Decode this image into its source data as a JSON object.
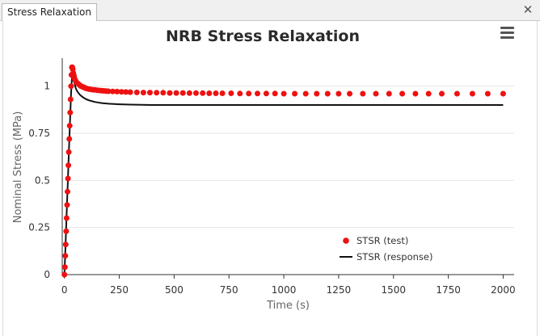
{
  "window": {
    "tab_label": "Stress Relaxation",
    "close_label": "✕"
  },
  "chart_data": {
    "type": "line",
    "title": "NRB Stress Relaxation",
    "xlabel": "Time (s)",
    "ylabel": "Nominal Stress (MPa)",
    "xlim": [
      -10,
      2050
    ],
    "ylim": [
      0,
      1.2
    ],
    "x_ticks": [
      0,
      250,
      500,
      750,
      1000,
      1250,
      1500,
      1750,
      2000
    ],
    "x_tick_labels": [
      "0",
      "250",
      "500",
      "750",
      "1000",
      "1250",
      "1500",
      "1750",
      "2000"
    ],
    "y_ticks": [
      0,
      0.25,
      0.5,
      0.75,
      1
    ],
    "y_tick_labels": [
      "0",
      "0.25",
      "0.5",
      "0.75",
      "1"
    ],
    "grid": "horizontal",
    "legend_position": "bottom-right",
    "series": [
      {
        "name": "STSR (test)",
        "style": "markers",
        "color": "#ee1111",
        "x": [
          0,
          2,
          4,
          6,
          8,
          10,
          12,
          14,
          16,
          18,
          20,
          22,
          24,
          26,
          28,
          30,
          32,
          34,
          36,
          38,
          40,
          42,
          44,
          46,
          50,
          55,
          60,
          65,
          70,
          75,
          80,
          85,
          90,
          95,
          100,
          110,
          120,
          130,
          140,
          150,
          160,
          170,
          180,
          190,
          200,
          220,
          240,
          260,
          280,
          300,
          330,
          360,
          390,
          420,
          450,
          480,
          510,
          540,
          570,
          600,
          630,
          660,
          690,
          720,
          760,
          800,
          840,
          880,
          920,
          960,
          1000,
          1050,
          1100,
          1150,
          1200,
          1250,
          1300,
          1360,
          1420,
          1480,
          1540,
          1600,
          1660,
          1720,
          1790,
          1860,
          1930,
          2000
        ],
        "y": [
          0.0,
          0.04,
          0.1,
          0.16,
          0.23,
          0.3,
          0.37,
          0.44,
          0.51,
          0.58,
          0.65,
          0.72,
          0.79,
          0.86,
          0.93,
          1.0,
          1.06,
          1.1,
          1.1,
          1.09,
          1.07,
          1.06,
          1.05,
          1.04,
          1.03,
          1.02,
          1.015,
          1.01,
          1.005,
          1.0,
          0.998,
          0.995,
          0.993,
          0.99,
          0.988,
          0.985,
          0.983,
          0.981,
          0.98,
          0.978,
          0.977,
          0.976,
          0.975,
          0.974,
          0.973,
          0.972,
          0.971,
          0.97,
          0.969,
          0.968,
          0.967,
          0.966,
          0.966,
          0.965,
          0.965,
          0.964,
          0.964,
          0.964,
          0.963,
          0.963,
          0.963,
          0.962,
          0.962,
          0.962,
          0.962,
          0.961,
          0.961,
          0.961,
          0.961,
          0.961,
          0.96,
          0.96,
          0.96,
          0.96,
          0.96,
          0.96,
          0.96,
          0.96,
          0.96,
          0.96,
          0.96,
          0.96,
          0.96,
          0.96,
          0.96,
          0.96,
          0.96,
          0.96
        ]
      },
      {
        "name": "STSR (response)",
        "style": "line",
        "color": "#111111",
        "x": [
          0,
          5,
          10,
          15,
          20,
          25,
          30,
          35,
          38,
          40,
          42,
          45,
          50,
          55,
          60,
          70,
          80,
          90,
          100,
          120,
          140,
          160,
          180,
          200,
          250,
          300,
          350,
          400,
          500,
          700,
          1000,
          1500,
          2000
        ],
        "y": [
          0.0,
          0.16,
          0.32,
          0.48,
          0.64,
          0.8,
          0.96,
          1.06,
          1.09,
          1.07,
          1.04,
          1.02,
          0.995,
          0.98,
          0.97,
          0.955,
          0.945,
          0.937,
          0.93,
          0.922,
          0.916,
          0.912,
          0.909,
          0.907,
          0.904,
          0.902,
          0.901,
          0.9,
          0.9,
          0.9,
          0.9,
          0.9,
          0.9
        ]
      }
    ]
  }
}
